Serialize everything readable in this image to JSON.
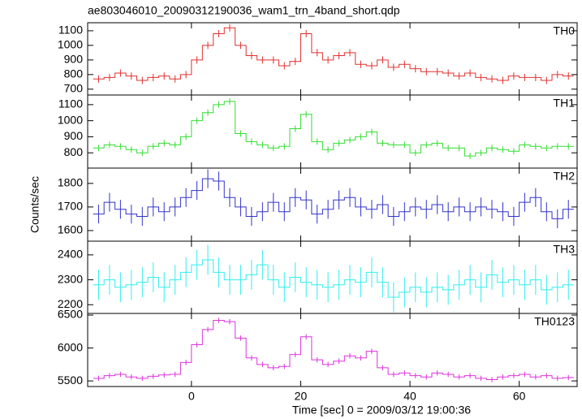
{
  "chart_data": [
    {
      "type": "step",
      "title": "ae803046010_20090312190036_wam1_trn_4band_short.qdp",
      "x": [
        -17,
        -15,
        -13,
        -11,
        -9,
        -7,
        -5,
        -3,
        -1,
        1,
        3,
        5,
        7,
        9,
        11,
        13,
        15,
        17,
        19,
        21,
        23,
        25,
        27,
        29,
        31,
        33,
        35,
        37,
        39,
        41,
        43,
        45,
        47,
        49,
        51,
        53,
        55,
        57,
        59,
        61,
        63,
        65,
        67,
        69
      ],
      "xlim": [
        -19,
        70.6
      ],
      "ylim": [
        660,
        1155
      ],
      "yticks": [
        700,
        800,
        900,
        1000,
        1100
      ],
      "series": [
        {
          "name": "TH0",
          "color": "#e03030",
          "error": 25,
          "values": [
            770,
            780,
            810,
            790,
            760,
            780,
            790,
            770,
            800,
            900,
            1000,
            1080,
            1120,
            1000,
            930,
            900,
            900,
            860,
            890,
            1080,
            950,
            900,
            930,
            950,
            870,
            860,
            900,
            850,
            870,
            840,
            820,
            820,
            810,
            790,
            810,
            780,
            770,
            760,
            790,
            780,
            780,
            760,
            800,
            790
          ]
        }
      ]
    },
    {
      "type": "step",
      "x": [
        -17,
        -15,
        -13,
        -11,
        -9,
        -7,
        -5,
        -3,
        -1,
        1,
        3,
        5,
        7,
        9,
        11,
        13,
        15,
        17,
        19,
        21,
        23,
        25,
        27,
        29,
        31,
        33,
        35,
        37,
        39,
        41,
        43,
        45,
        47,
        49,
        51,
        53,
        55,
        57,
        59,
        61,
        63,
        65,
        67,
        69
      ],
      "xlim": [
        -19,
        70.6
      ],
      "ylim": [
        705,
        1160
      ],
      "yticks": [
        800,
        900,
        1000,
        1100
      ],
      "series": [
        {
          "name": "TH1",
          "color": "#33dd33",
          "error": 20,
          "values": [
            830,
            850,
            840,
            820,
            800,
            840,
            860,
            850,
            900,
            1000,
            1050,
            1100,
            1120,
            920,
            870,
            850,
            830,
            840,
            950,
            1040,
            870,
            820,
            860,
            880,
            900,
            930,
            860,
            850,
            850,
            800,
            850,
            860,
            830,
            830,
            780,
            800,
            830,
            820,
            810,
            850,
            840,
            830,
            840,
            840
          ]
        }
      ]
    },
    {
      "type": "step",
      "ylabel": "Counts/sec",
      "x": [
        -17,
        -15,
        -13,
        -11,
        -9,
        -7,
        -5,
        -3,
        -1,
        1,
        3,
        5,
        7,
        9,
        11,
        13,
        15,
        17,
        19,
        21,
        23,
        25,
        27,
        29,
        31,
        33,
        35,
        37,
        39,
        41,
        43,
        45,
        47,
        49,
        51,
        53,
        55,
        57,
        59,
        61,
        63,
        65,
        67,
        69
      ],
      "xlim": [
        -19,
        70.6
      ],
      "ylim": [
        1555,
        1865
      ],
      "yticks": [
        1600,
        1700,
        1800
      ],
      "series": [
        {
          "name": "TH2",
          "color": "#3333cc",
          "error": 40,
          "values": [
            1670,
            1720,
            1690,
            1670,
            1660,
            1700,
            1680,
            1700,
            1740,
            1770,
            1820,
            1810,
            1740,
            1700,
            1660,
            1680,
            1720,
            1680,
            1740,
            1730,
            1670,
            1690,
            1730,
            1740,
            1700,
            1690,
            1710,
            1660,
            1680,
            1700,
            1690,
            1710,
            1680,
            1700,
            1680,
            1700,
            1690,
            1680,
            1660,
            1720,
            1740,
            1680,
            1650,
            1690
          ]
        }
      ]
    },
    {
      "type": "step",
      "x": [
        -17,
        -15,
        -13,
        -11,
        -9,
        -7,
        -5,
        -3,
        -1,
        1,
        3,
        5,
        7,
        9,
        11,
        13,
        15,
        17,
        19,
        21,
        23,
        25,
        27,
        29,
        31,
        33,
        35,
        37,
        39,
        41,
        43,
        45,
        47,
        49,
        51,
        53,
        55,
        57,
        59,
        61,
        63,
        65,
        67,
        69
      ],
      "xlim": [
        -19,
        70.6
      ],
      "ylim": [
        2165,
        2455
      ],
      "yticks": [
        2200,
        2300,
        2400
      ],
      "series": [
        {
          "name": "TH3",
          "color": "#33eeee",
          "error": 60,
          "values": [
            2280,
            2300,
            2270,
            2280,
            2290,
            2310,
            2270,
            2300,
            2330,
            2360,
            2380,
            2330,
            2300,
            2300,
            2320,
            2360,
            2300,
            2270,
            2310,
            2290,
            2280,
            2270,
            2280,
            2300,
            2290,
            2330,
            2290,
            2230,
            2250,
            2270,
            2250,
            2270,
            2260,
            2280,
            2300,
            2270,
            2320,
            2290,
            2300,
            2280,
            2300,
            2260,
            2270,
            2280
          ]
        }
      ]
    },
    {
      "type": "step",
      "xlabel": "Time [sec] 0 = 2009/03/12 19:00:36",
      "x": [
        -17,
        -15,
        -13,
        -11,
        -9,
        -7,
        -5,
        -3,
        -1,
        1,
        3,
        5,
        7,
        9,
        11,
        13,
        15,
        17,
        19,
        21,
        23,
        25,
        27,
        29,
        31,
        33,
        35,
        37,
        39,
        41,
        43,
        45,
        47,
        49,
        51,
        53,
        55,
        57,
        59,
        61,
        63,
        65,
        67,
        69
      ],
      "xlim": [
        -19,
        70.6
      ],
      "xticks": [
        0,
        20,
        40,
        60
      ],
      "ylim": [
        5415,
        6525
      ],
      "yticks": [
        5500,
        6000,
        6500
      ],
      "series": [
        {
          "name": "TH0123",
          "color": "#dd33dd",
          "error": 40,
          "values": [
            5540,
            5580,
            5600,
            5560,
            5540,
            5570,
            5590,
            5600,
            5780,
            6050,
            6280,
            6420,
            6400,
            6150,
            5850,
            5750,
            5700,
            5720,
            5900,
            6170,
            5820,
            5750,
            5800,
            5880,
            5850,
            5950,
            5700,
            5600,
            5620,
            5580,
            5560,
            5620,
            5600,
            5560,
            5580,
            5540,
            5520,
            5560,
            5580,
            5600,
            5560,
            5580,
            5540,
            5550
          ]
        }
      ]
    }
  ]
}
